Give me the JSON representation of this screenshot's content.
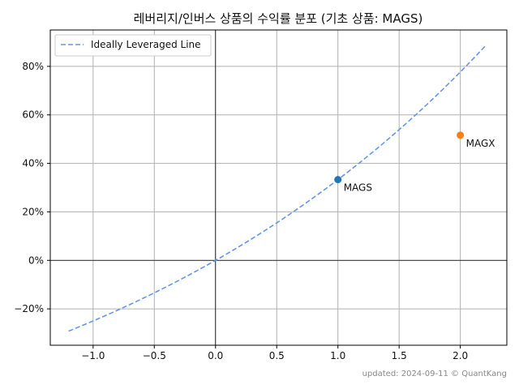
{
  "chart_data": {
    "type": "scatter",
    "title": "레버리지/인버스 상품의 수익률 분포 (기초 상품: MAGS)",
    "xlabel": "",
    "ylabel": "",
    "xlim": [
      -1.35,
      2.38
    ],
    "ylim": [
      -35,
      95
    ],
    "x_ticks": [
      -1.0,
      -0.5,
      0.0,
      0.5,
      1.0,
      1.5,
      2.0
    ],
    "x_tick_labels": [
      "−1.0",
      "−0.5",
      "0.0",
      "0.5",
      "1.0",
      "1.5",
      "2.0"
    ],
    "y_ticks": [
      -20,
      0,
      20,
      40,
      60,
      80
    ],
    "y_tick_labels": [
      "−20%",
      "0%",
      "20%",
      "40%",
      "60%",
      "80%"
    ],
    "grid": true,
    "legend": {
      "placement": "top-left",
      "entries": [
        "Ideally Leveraged Line"
      ]
    },
    "line": {
      "name": "Ideally Leveraged Line",
      "color": "#6495ed",
      "style": "dashed",
      "x_range": [
        -1.2,
        2.2
      ],
      "base_return": 33.3
    },
    "points": [
      {
        "label": "MAGS",
        "x": 1.0,
        "y": 33.3,
        "color": "#1f77b4"
      },
      {
        "label": "MAGX",
        "x": 2.0,
        "y": 51.6,
        "color": "#ff7f0e"
      }
    ],
    "footer": "updated: 2024-09-11 © QuantKang"
  }
}
